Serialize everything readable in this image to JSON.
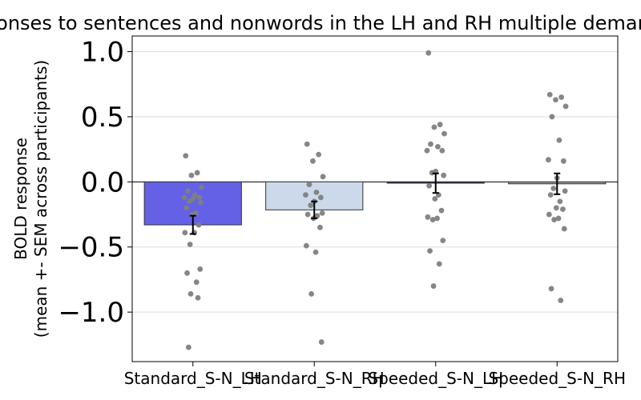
{
  "chart_data": {
    "type": "bar",
    "title": "BOLD responses to sentences and nonwords in the LH and RH multiple demand network",
    "ylabel_line1": "BOLD response",
    "ylabel_line2": "(mean +- SEM across participants)",
    "xlabel": "",
    "ylim": [
      -1.38,
      1.12
    ],
    "yticks": [
      1.0,
      0.5,
      0.0,
      -0.5,
      -1.0
    ],
    "ytick_labels": [
      "1.0",
      "0.5",
      "0.0",
      "−0.5",
      "−1.0"
    ],
    "grid": true,
    "categories": [
      "Standard_S-N_LH",
      "Standard_S-N_RH",
      "Speeded_S-N_LH",
      "Speeded_S-N_RH"
    ],
    "bar_colors": [
      "#6461e6",
      "#cbd9ea",
      "#2a1f6a",
      "#9a9a9a"
    ],
    "values": [
      -0.33,
      -0.215,
      -0.01,
      -0.015
    ],
    "sem": [
      0.07,
      0.065,
      0.075,
      0.08
    ],
    "points": [
      [
        0.2,
        0.07,
        0.05,
        -0.04,
        -0.07,
        -0.1,
        -0.12,
        -0.12,
        -0.13,
        -0.15,
        -0.16,
        -0.2,
        -0.24,
        -0.25,
        -0.33,
        -0.39,
        -0.39,
        -0.48,
        -0.67,
        -0.7,
        -0.77,
        -0.86,
        -0.89,
        -1.27
      ],
      [
        0.29,
        0.21,
        0.16,
        0.04,
        -0.02,
        -0.08,
        -0.1,
        -0.12,
        -0.15,
        -0.18,
        -0.24,
        -0.25,
        -0.26,
        -0.28,
        -0.35,
        -0.49,
        -0.54,
        -0.86,
        -1.23
      ],
      [
        0.99,
        0.44,
        0.42,
        0.37,
        0.29,
        0.27,
        0.24,
        0.24,
        0.08,
        0.07,
        0.05,
        -0.03,
        -0.1,
        -0.13,
        -0.22,
        -0.27,
        -0.28,
        -0.29,
        -0.45,
        -0.53,
        -0.63,
        -0.8
      ],
      [
        0.67,
        0.65,
        0.63,
        0.58,
        0.5,
        0.32,
        0.17,
        0.16,
        0.03,
        -0.05,
        -0.07,
        -0.1,
        -0.15,
        -0.2,
        -0.21,
        -0.25,
        -0.28,
        -0.29,
        -0.36,
        -0.82,
        -0.91
      ]
    ]
  }
}
